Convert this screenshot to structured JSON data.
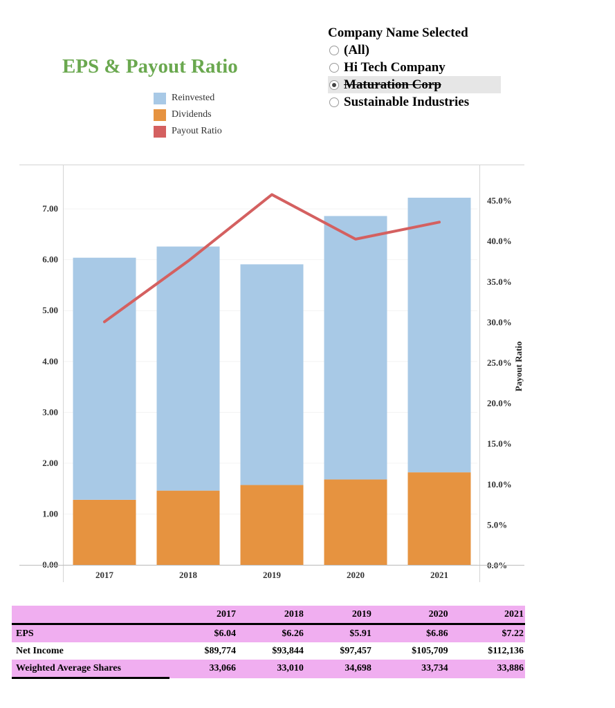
{
  "title": "EPS & Payout Ratio",
  "legend": [
    {
      "label": "Reinvested",
      "color": "#a8c9e6"
    },
    {
      "label": "Dividends",
      "color": "#e69340"
    },
    {
      "label": "Payout Ratio",
      "color": "#d46060"
    }
  ],
  "filter": {
    "title": "Company Name Selected",
    "options": [
      {
        "label": "(All)",
        "selected": false
      },
      {
        "label": "Hi Tech Company",
        "selected": false
      },
      {
        "label": "Maturation Corp",
        "selected": true
      },
      {
        "label": "Sustainable Industries",
        "selected": false
      }
    ]
  },
  "chart_data": {
    "type": "bar",
    "stacked": true,
    "categories": [
      "2017",
      "2018",
      "2019",
      "2020",
      "2021"
    ],
    "series": [
      {
        "name": "Dividends",
        "color": "#e69340",
        "values": [
          1.28,
          1.46,
          1.57,
          1.68,
          1.82
        ]
      },
      {
        "name": "Reinvested",
        "color": "#a8c9e6",
        "values": [
          4.76,
          4.8,
          4.34,
          5.18,
          5.4
        ]
      }
    ],
    "line_series": {
      "name": "Payout Ratio",
      "color": "#d46060",
      "axis": "right",
      "values": [
        30.0,
        37.5,
        45.7,
        40.2,
        42.3
      ]
    },
    "left_axis": {
      "ticks": [
        "0.00",
        "1.00",
        "2.00",
        "3.00",
        "4.00",
        "5.00",
        "6.00",
        "7.00"
      ],
      "ylim": [
        0,
        7.6
      ]
    },
    "right_axis": {
      "label": "Payout Ratio",
      "ticks": [
        "0.0%",
        "5.0%",
        "10.0%",
        "15.0%",
        "20.0%",
        "25.0%",
        "30.0%",
        "35.0%",
        "40.0%",
        "45.0%"
      ],
      "ylim": [
        0,
        47.7
      ]
    }
  },
  "table": {
    "years": [
      "2017",
      "2018",
      "2019",
      "2020",
      "2021"
    ],
    "rows": [
      {
        "label": "EPS",
        "values": [
          "$6.04",
          "$6.26",
          "$5.91",
          "$6.86",
          "$7.22"
        ]
      },
      {
        "label": "Net Income",
        "values": [
          "$89,774",
          "$93,844",
          "$97,457",
          "$105,709",
          "$112,136"
        ]
      },
      {
        "label": "Weighted Average Shares",
        "values": [
          "33,066",
          "33,010",
          "34,698",
          "33,734",
          "33,886"
        ]
      }
    ]
  }
}
